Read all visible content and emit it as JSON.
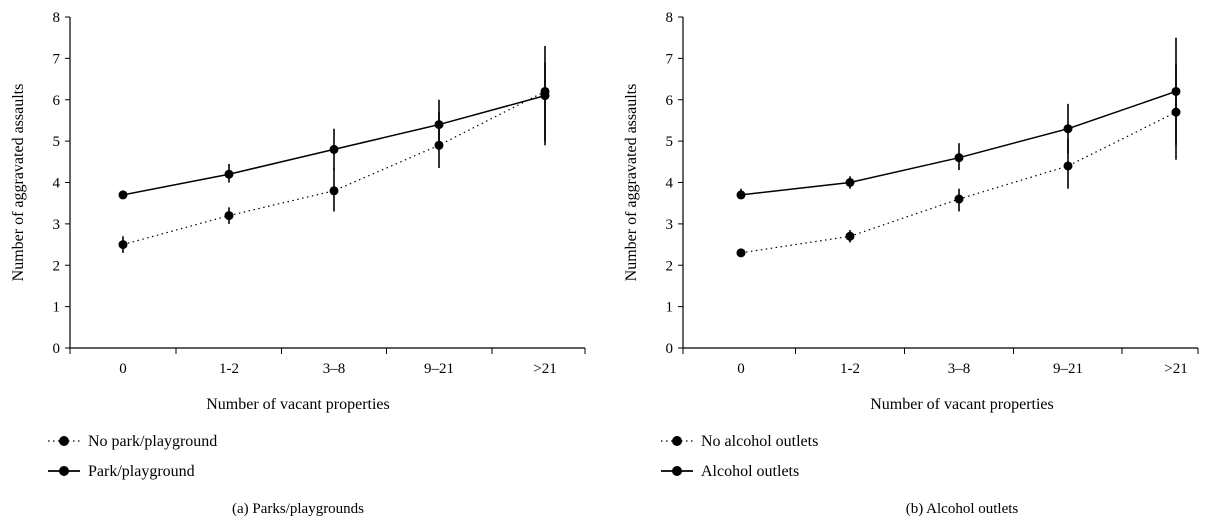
{
  "chart_data": [
    {
      "type": "line",
      "caption": "(a)  Parks/playgrounds",
      "xlabel": "Number of vacant properties",
      "ylabel": "Number of aggravated assaults",
      "categories": [
        "0",
        "1-2",
        "3–8",
        "9–21",
        ">21"
      ],
      "ylim": [
        0,
        8
      ],
      "yticks": [
        0,
        1,
        2,
        3,
        4,
        5,
        6,
        7,
        8
      ],
      "legend_position": "bottom-left",
      "series": [
        {
          "name": "No park/playground",
          "style": "dotted",
          "values": [
            2.5,
            3.2,
            3.8,
            4.9,
            6.2
          ],
          "err_low": [
            2.3,
            3.0,
            3.3,
            4.35,
            5.0
          ],
          "err_high": [
            2.7,
            3.4,
            4.35,
            5.7,
            6.9
          ]
        },
        {
          "name": "Park/playground",
          "style": "solid",
          "values": [
            3.7,
            4.2,
            4.8,
            5.4,
            6.1
          ],
          "err_low": [
            3.6,
            4.0,
            4.3,
            4.8,
            4.9
          ],
          "err_high": [
            3.8,
            4.45,
            5.3,
            6.0,
            7.3
          ]
        }
      ]
    },
    {
      "type": "line",
      "caption": "(b)  Alcohol outlets",
      "xlabel": "Number of vacant properties",
      "ylabel": "Number of aggravated assaults",
      "categories": [
        "0",
        "1-2",
        "3–8",
        "9–21",
        ">21"
      ],
      "ylim": [
        0,
        8
      ],
      "yticks": [
        0,
        1,
        2,
        3,
        4,
        5,
        6,
        7,
        8
      ],
      "legend_position": "bottom-left",
      "series": [
        {
          "name": "No alcohol outlets",
          "style": "dotted",
          "values": [
            2.3,
            2.7,
            3.6,
            4.4,
            5.7
          ],
          "err_low": [
            2.2,
            2.55,
            3.3,
            3.85,
            4.55
          ],
          "err_high": [
            2.4,
            2.85,
            3.85,
            5.05,
            6.85
          ]
        },
        {
          "name": "Alcohol outlets",
          "style": "solid",
          "values": [
            3.7,
            4.0,
            4.6,
            5.3,
            6.2
          ],
          "err_low": [
            3.6,
            3.85,
            4.3,
            4.7,
            4.9
          ],
          "err_high": [
            3.85,
            4.15,
            4.95,
            5.9,
            7.5
          ]
        }
      ]
    }
  ]
}
